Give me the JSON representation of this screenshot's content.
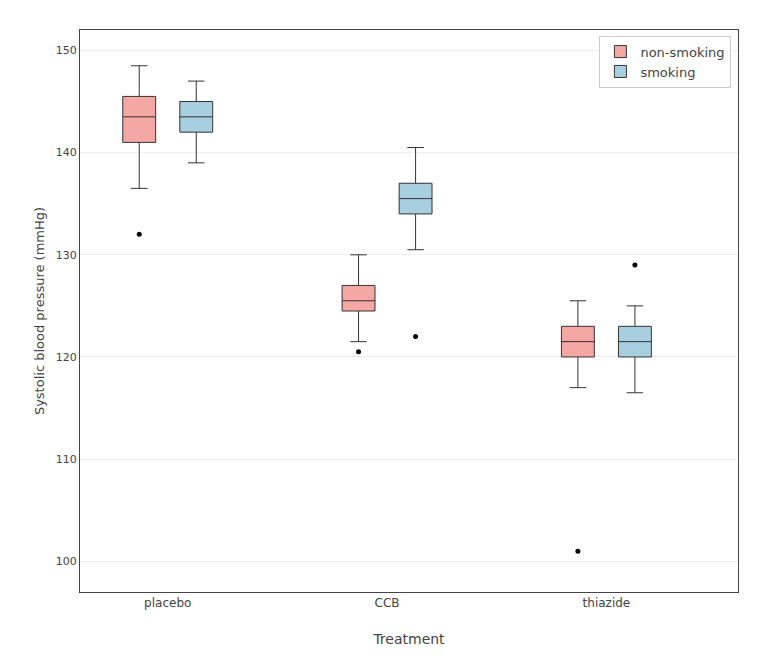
{
  "chart_data": {
    "type": "box",
    "xlabel": "Treatment",
    "ylabel": "Systolic blood pressure (mmHg)",
    "categories": [
      "placebo",
      "CCB",
      "thiazide"
    ],
    "ylim": [
      97,
      152
    ],
    "yticks": [
      100,
      110,
      120,
      130,
      140,
      150
    ],
    "grid": true,
    "legend": "upper right",
    "series": [
      {
        "name": "non-smoking",
        "color": "#f4a7a3",
        "q1": [
          141.0,
          124.5,
          120.0
        ],
        "median": [
          143.5,
          125.5,
          121.5
        ],
        "q3": [
          145.5,
          127.0,
          123.0
        ],
        "whislo": [
          136.5,
          121.5,
          117.0
        ],
        "whishi": [
          148.5,
          130.0,
          125.5
        ],
        "fliers": [
          [
            132.0
          ],
          [
            120.5
          ],
          [
            101.0
          ]
        ]
      },
      {
        "name": "smoking",
        "color": "#a8cfe0",
        "q1": [
          142.0,
          134.0,
          120.0
        ],
        "median": [
          143.5,
          135.5,
          121.5
        ],
        "q3": [
          145.0,
          137.0,
          123.0
        ],
        "whislo": [
          139.0,
          130.5,
          116.5
        ],
        "whishi": [
          147.0,
          140.5,
          125.0
        ],
        "fliers": [
          [],
          [
            122.0
          ],
          [
            129.0
          ]
        ]
      }
    ]
  }
}
